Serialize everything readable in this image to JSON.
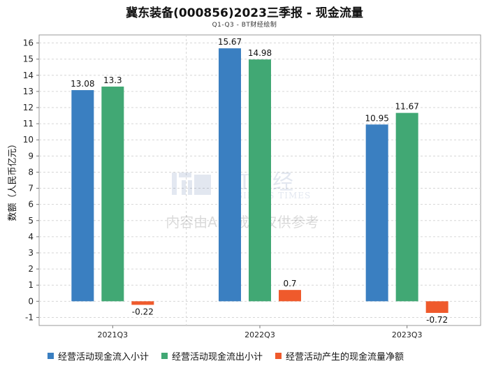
{
  "title": "冀东装备(000856)2023三季报 - 现金流量",
  "subtitle": "Q1-Q3 - BT财经绘制",
  "watermark": {
    "logo": "BT财经",
    "logo_sub": "BUSINESS TIMES",
    "text": "内容由AI生成，仅供参考"
  },
  "colors": {
    "series1": "#3a7fc1",
    "series2": "#41a874",
    "series3": "#ef5a2c"
  },
  "chart_data": {
    "type": "bar",
    "categories": [
      "2021Q3",
      "2022Q3",
      "2023Q3"
    ],
    "ylabel": "数额（人民币亿元）",
    "xlabel": "",
    "ylim": [
      -1.5,
      16.5
    ],
    "yticks": [
      -1,
      0,
      1,
      2,
      3,
      4,
      5,
      6,
      7,
      8,
      9,
      10,
      11,
      12,
      13,
      14,
      15,
      16
    ],
    "grid": true,
    "legend_position": "bottom",
    "series": [
      {
        "name": "经营活动现金流入小计",
        "values": [
          13.08,
          15.67,
          10.95
        ],
        "labels": [
          "13.08",
          "15.67",
          "10.95"
        ]
      },
      {
        "name": "经营活动现金流出小计",
        "values": [
          13.3,
          14.98,
          11.67
        ],
        "labels": [
          "13.3",
          "14.98",
          "11.67"
        ]
      },
      {
        "name": "经营活动产生的现金流量净额",
        "values": [
          -0.22,
          0.7,
          -0.72
        ],
        "labels": [
          "-0.22",
          "0.7",
          "-0.72"
        ]
      }
    ]
  }
}
